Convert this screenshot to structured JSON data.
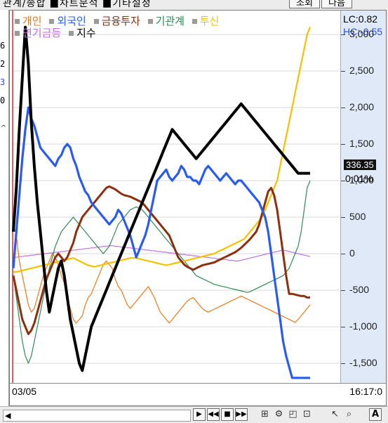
{
  "topbar": {
    "cut_text": "관계/종합 ■차트분석 ■기타설정",
    "buttons": [
      "조회",
      "다음"
    ]
  },
  "left_panel": {
    "values": [
      {
        "text": "6",
        "color": "#000000"
      },
      {
        "text": "2",
        "color": "#000000"
      },
      {
        "text": "3",
        "color": "#2a4ef0"
      },
      {
        "text": "0",
        "color": "#000000"
      }
    ]
  },
  "legend": [
    {
      "label": "개인",
      "color": "#f07818"
    },
    {
      "label": "외국인",
      "color": "#2a5bf0"
    },
    {
      "label": "금융투자",
      "color": "#8b2f0e"
    },
    {
      "label": "기관계",
      "color": "#2f8a55"
    },
    {
      "label": "투신",
      "color": "#f2c200"
    },
    {
      "label": "연기금등",
      "color": "#c070e0"
    },
    {
      "label": "지수",
      "color": "#000000"
    }
  ],
  "axis": {
    "lc_text": "LC:0.82",
    "hc_text": "HC:-0.55",
    "price_tag": "336.35",
    "pct_text": "0.01%",
    "ticks": [
      "3,000",
      "2,500",
      "2,000",
      "1,500",
      "1,000",
      "500",
      "0",
      "-500",
      "-1,000",
      "-1,500"
    ]
  },
  "bottom": {
    "date": "03/05",
    "time": "16:17:0"
  },
  "chart_data": {
    "type": "line",
    "ylim": [
      -1750,
      3250
    ],
    "x_count": 100,
    "series": [
      {
        "name": "개인",
        "color": "#f07818",
        "values": [
          400,
          250,
          -100,
          -300,
          -500,
          -700,
          -800,
          -750,
          -600,
          -450,
          -300,
          -200,
          -100,
          0,
          -50,
          -150,
          -300,
          -400,
          -600,
          -750,
          -900,
          -950,
          -900,
          -850,
          -700,
          -600,
          -550,
          -450,
          -350,
          -250,
          -150,
          -100,
          -150,
          -200,
          -350,
          -450,
          -500,
          -600,
          -700,
          -750,
          -700,
          -650,
          -600,
          -550,
          -500,
          -450,
          -520,
          -600,
          -700,
          -800,
          -850,
          -900,
          -950,
          -900,
          -850,
          -800,
          -750,
          -700,
          -650,
          -620,
          -600,
          -650,
          -700,
          -750,
          -780,
          -800,
          -780,
          -760,
          -740,
          -720,
          -700,
          -680,
          -660,
          -640,
          -620,
          -600,
          -580,
          -600,
          -620,
          -640,
          -660,
          -680,
          -700,
          -720,
          -740,
          -760,
          -780,
          -800,
          -820,
          -840,
          -860,
          -880,
          -900,
          -920,
          -940,
          -900,
          -850,
          -800,
          -750,
          -700
        ]
      },
      {
        "name": "외국인",
        "color": "#2a5bf0",
        "values": [
          -200,
          300,
          800,
          1300,
          1700,
          2000,
          1850,
          1750,
          1600,
          1450,
          1400,
          1350,
          1300,
          1250,
          1200,
          1300,
          1350,
          1450,
          1500,
          1450,
          1300,
          1200,
          1050,
          950,
          850,
          800,
          700,
          650,
          600,
          550,
          500,
          450,
          400,
          450,
          500,
          600,
          550,
          450,
          350,
          250,
          100,
          -50,
          50,
          150,
          250,
          400,
          600,
          800,
          1000,
          1050,
          1100,
          1150,
          1050,
          1000,
          1050,
          1100,
          1200,
          1150,
          1050,
          1050,
          1000,
          1000,
          950,
          1050,
          1150,
          1200,
          1150,
          1100,
          1050,
          1000,
          1050,
          1100,
          1050,
          1000,
          950,
          1000,
          1000,
          950,
          900,
          850,
          800,
          750,
          700,
          600,
          500,
          300,
          0,
          -300,
          -600,
          -900,
          -1200,
          -1400,
          -1550,
          -1700,
          -1700,
          -1700,
          -1700,
          -1700,
          -1700,
          -1700
        ]
      },
      {
        "name": "금융투자",
        "color": "#8b2f0e",
        "values": [
          -300,
          -500,
          -700,
          -900,
          -1000,
          -1100,
          -1050,
          -950,
          -800,
          -650,
          -500,
          -350,
          -250,
          -150,
          -50,
          0,
          -50,
          -100,
          -50,
          50,
          150,
          300,
          400,
          500,
          550,
          600,
          650,
          700,
          750,
          800,
          850,
          900,
          920,
          900,
          880,
          850,
          820,
          800,
          790,
          780,
          760,
          740,
          720,
          700,
          650,
          600,
          550,
          500,
          450,
          400,
          350,
          300,
          250,
          150,
          50,
          -50,
          -100,
          -150,
          -180,
          -200,
          -220,
          -200,
          -180,
          -160,
          -150,
          -140,
          -130,
          -120,
          -100,
          -80,
          -60,
          -40,
          -20,
          0,
          20,
          50,
          80,
          120,
          160,
          200,
          250,
          300,
          400,
          550,
          700,
          850,
          900,
          800,
          600,
          300,
          0,
          -300,
          -550,
          -550,
          -560,
          -570,
          -580,
          -580,
          -600,
          -600
        ]
      },
      {
        "name": "기관계",
        "color": "#2f8a55",
        "values": [
          -300,
          -600,
          -900,
          -1200,
          -1400,
          -1500,
          -1400,
          -1200,
          -1000,
          -800,
          -600,
          -400,
          -200,
          -50,
          100,
          200,
          300,
          350,
          400,
          450,
          500,
          450,
          400,
          350,
          300,
          250,
          200,
          150,
          100,
          50,
          0,
          50,
          100,
          200,
          300,
          400,
          450,
          500,
          550,
          600,
          620,
          640,
          620,
          600,
          550,
          500,
          450,
          400,
          350,
          300,
          250,
          200,
          150,
          100,
          50,
          0,
          -50,
          -100,
          -150,
          -200,
          -250,
          -300,
          -320,
          -340,
          -360,
          -380,
          -400,
          -420,
          -430,
          -440,
          -450,
          -460,
          -470,
          -480,
          -490,
          -500,
          -510,
          -520,
          -530,
          -520,
          -500,
          -480,
          -460,
          -440,
          -420,
          -400,
          -380,
          -360,
          -340,
          -320,
          -300,
          -250,
          -200,
          -100,
          0,
          100,
          300,
          600,
          900,
          1000
        ]
      },
      {
        "name": "투신",
        "color": "#f2c200",
        "values": [
          -250,
          -250,
          -240,
          -230,
          -220,
          -210,
          -200,
          -190,
          -180,
          -170,
          -160,
          -150,
          -140,
          -130,
          -120,
          -110,
          -100,
          -90,
          -80,
          -70,
          -60,
          -80,
          -100,
          -120,
          -140,
          -160,
          -170,
          -180,
          -170,
          -160,
          -150,
          -140,
          -130,
          -120,
          -110,
          -100,
          -90,
          -80,
          -70,
          -60,
          -60,
          -60,
          -70,
          -80,
          -90,
          -100,
          -110,
          -120,
          -130,
          -140,
          -150,
          -160,
          -150,
          -140,
          -130,
          -120,
          -110,
          -100,
          -90,
          -80,
          -70,
          -60,
          -50,
          -40,
          -30,
          -20,
          -10,
          0,
          20,
          40,
          60,
          80,
          100,
          120,
          140,
          160,
          180,
          200,
          250,
          300,
          350,
          400,
          450,
          500,
          600,
          700,
          800,
          900,
          1000,
          1200,
          1400,
          1600,
          1800,
          2000,
          2200,
          2400,
          2600,
          2800,
          3000,
          3100
        ]
      },
      {
        "name": "연기금등",
        "color": "#c070e0",
        "values": [
          -50,
          -50,
          -40,
          -40,
          -30,
          -30,
          -20,
          -20,
          -10,
          -10,
          0,
          0,
          10,
          10,
          20,
          20,
          30,
          30,
          40,
          40,
          50,
          50,
          60,
          60,
          70,
          70,
          80,
          80,
          90,
          90,
          100,
          100,
          110,
          110,
          100,
          100,
          90,
          90,
          80,
          80,
          70,
          70,
          60,
          60,
          50,
          50,
          40,
          40,
          30,
          30,
          20,
          20,
          10,
          10,
          0,
          0,
          -10,
          -10,
          -20,
          -20,
          -30,
          -30,
          -40,
          -40,
          -50,
          -50,
          -60,
          -60,
          -70,
          -70,
          -80,
          -80,
          -90,
          -90,
          -100,
          -100,
          -90,
          -80,
          -70,
          -60,
          -50,
          -40,
          -30,
          -20,
          -10,
          0,
          10,
          20,
          30,
          40,
          50,
          40,
          30,
          20,
          10,
          0,
          -10,
          -20,
          -30,
          -40
        ]
      },
      {
        "name": "지수",
        "color": "#000000",
        "values": [
          300,
          900,
          1700,
          2400,
          3100,
          2600,
          1800,
          1200,
          700,
          300,
          -100,
          -500,
          -800,
          -600,
          -400,
          -200,
          -100,
          -300,
          -600,
          -900,
          -1100,
          -1300,
          -1500,
          -1600,
          -1400,
          -1200,
          -1000,
          -900,
          -800,
          -700,
          -600,
          -500,
          -400,
          -300,
          -200,
          -100,
          0,
          100,
          200,
          300,
          400,
          500,
          600,
          700,
          800,
          900,
          1000,
          1100,
          1200,
          1300,
          1400,
          1500,
          1600,
          1700,
          1650,
          1600,
          1550,
          1500,
          1450,
          1400,
          1350,
          1300,
          1350,
          1400,
          1450,
          1500,
          1550,
          1600,
          1650,
          1700,
          1750,
          1800,
          1850,
          1900,
          1950,
          2000,
          2050,
          2000,
          1950,
          1900,
          1850,
          1800,
          1750,
          1700,
          1650,
          1600,
          1550,
          1500,
          1450,
          1400,
          1350,
          1300,
          1250,
          1200,
          1150,
          1100,
          1100,
          1100,
          1100,
          1100
        ]
      }
    ],
    "right_indicator": {
      "index_level": 1100,
      "tag": "336.35"
    }
  },
  "toolbar": {
    "scroll_left": "◀",
    "nav_buttons": [
      "▶",
      "◀◀",
      "■",
      "▶▶"
    ],
    "tool_icons": [
      "split-icon",
      "settings-icon",
      "window-icon",
      "chart-icon",
      "cursor-icon",
      "zoom-icon"
    ],
    "text_icon": "A"
  }
}
